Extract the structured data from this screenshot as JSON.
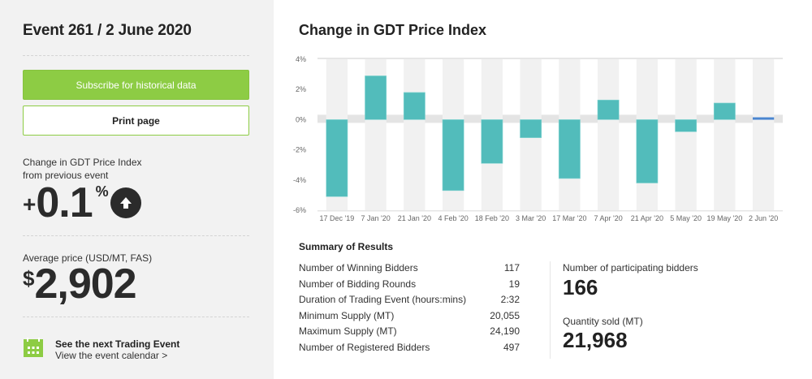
{
  "sidebar": {
    "event_title": "Event 261 / 2 June 2020",
    "subscribe_label": "Subscribe for historical data",
    "print_label": "Print page",
    "change_label_line1": "Change in GDT Price Index",
    "change_label_line2": "from previous event",
    "change_sign": "+",
    "change_value": "0.1",
    "change_unit": "%",
    "change_direction_icon": "arrow-up-circle-icon",
    "avg_price_label": "Average price (USD/MT, FAS)",
    "avg_price_currency": "$",
    "avg_price_value": "2,902",
    "next_event_title": "See the next Trading Event",
    "next_event_link": "View the event calendar >",
    "accent_color": "#8dcc44"
  },
  "main": {
    "chart_title": "Change in GDT Price Index",
    "summary_title": "Summary of Results",
    "summary_rows": [
      {
        "label": "Number of Winning Bidders",
        "value": "117"
      },
      {
        "label": "Number of Bidding Rounds",
        "value": "19"
      },
      {
        "label": "Duration of Trading Event (hours:mins)",
        "value": "2:32"
      },
      {
        "label": "Minimum Supply (MT)",
        "value": "20,055"
      },
      {
        "label": "Maximum Supply (MT)",
        "value": "24,190"
      },
      {
        "label": "Number of Registered Bidders",
        "value": "497"
      }
    ],
    "participating_label": "Number of participating bidders",
    "participating_value": "166",
    "quantity_label": "Quantity sold (MT)",
    "quantity_value": "21,968"
  },
  "chart_data": {
    "type": "bar",
    "title": "Change in GDT Price Index",
    "xlabel": "",
    "ylabel": "",
    "categories": [
      "17 Dec '19",
      "7 Jan '20",
      "21 Jan '20",
      "4 Feb '20",
      "18 Feb '20",
      "3 Mar '20",
      "17 Mar '20",
      "7 Apr '20",
      "21 Apr '20",
      "5 May '20",
      "19 May '20",
      "2 Jun '20"
    ],
    "values": [
      -5.1,
      2.9,
      1.8,
      -4.7,
      -2.9,
      -1.2,
      -3.9,
      1.3,
      -4.2,
      -0.8,
      1.1,
      0.1
    ],
    "ylim": [
      -6,
      4
    ],
    "yticks": [
      4,
      2,
      0,
      -2,
      -4,
      -6
    ],
    "ytick_labels": [
      "4%",
      "2%",
      "0%",
      "-2%",
      "-4%",
      "-6%"
    ],
    "grid": false,
    "bar_color": "#52bcbb",
    "current_bar_color": "#4a86d0",
    "band_color": "#f1f1f1"
  }
}
